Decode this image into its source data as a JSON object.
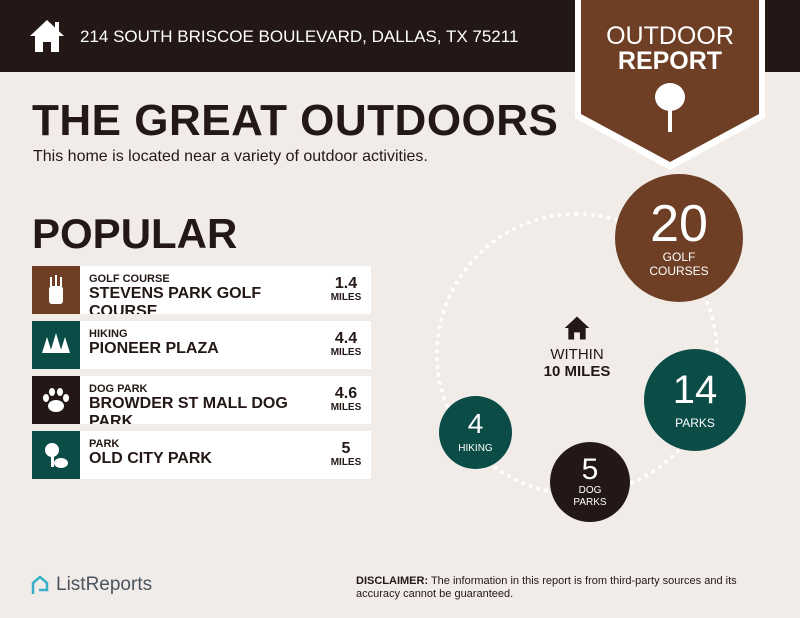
{
  "header": {
    "address": "214 SOUTH BRISCOE BOULEVARD, DALLAS, TX 75211",
    "badge_line1": "OUTDOOR",
    "badge_line2": "REPORT"
  },
  "title": "THE GREAT OUTDOORS",
  "subtitle": "This home is located near a variety of outdoor activities.",
  "popular": {
    "heading": "POPULAR",
    "items": [
      {
        "category": "GOLF COURSE",
        "name": "STEVENS PARK GOLF COURSE",
        "distance": "1.4",
        "unit": "MILES",
        "icon": "golf-bag-icon",
        "color": "#6e3f25"
      },
      {
        "category": "HIKING",
        "name": "PIONEER PLAZA",
        "distance": "4.4",
        "unit": "MILES",
        "icon": "trees-icon",
        "color": "#0c4c47"
      },
      {
        "category": "DOG PARK",
        "name": "BROWDER ST MALL DOG PARK",
        "distance": "4.6",
        "unit": "MILES",
        "icon": "paw-icon",
        "color": "#231815"
      },
      {
        "category": "PARK",
        "name": "OLD CITY PARK",
        "distance": "5",
        "unit": "MILES",
        "icon": "park-icon",
        "color": "#0c4c47"
      }
    ]
  },
  "nearby": {
    "within_line1": "WITHIN",
    "within_line2": "10 MILES",
    "stats": [
      {
        "count": "20",
        "label1": "GOLF",
        "label2": "COURSES",
        "color": "#6e3f25"
      },
      {
        "count": "14",
        "label1": "PARKS",
        "color": "#0c4c47"
      },
      {
        "count": "4",
        "label1": "HIKING",
        "color": "#0c4c47"
      },
      {
        "count": "5",
        "label1": "DOG",
        "label2": "PARKS",
        "color": "#231815"
      }
    ]
  },
  "footer": {
    "logo": "ListReports",
    "disclaimer_label": "DISCLAIMER:",
    "disclaimer_text": " The information in this report is from third-party sources and its accuracy cannot be guaranteed."
  }
}
